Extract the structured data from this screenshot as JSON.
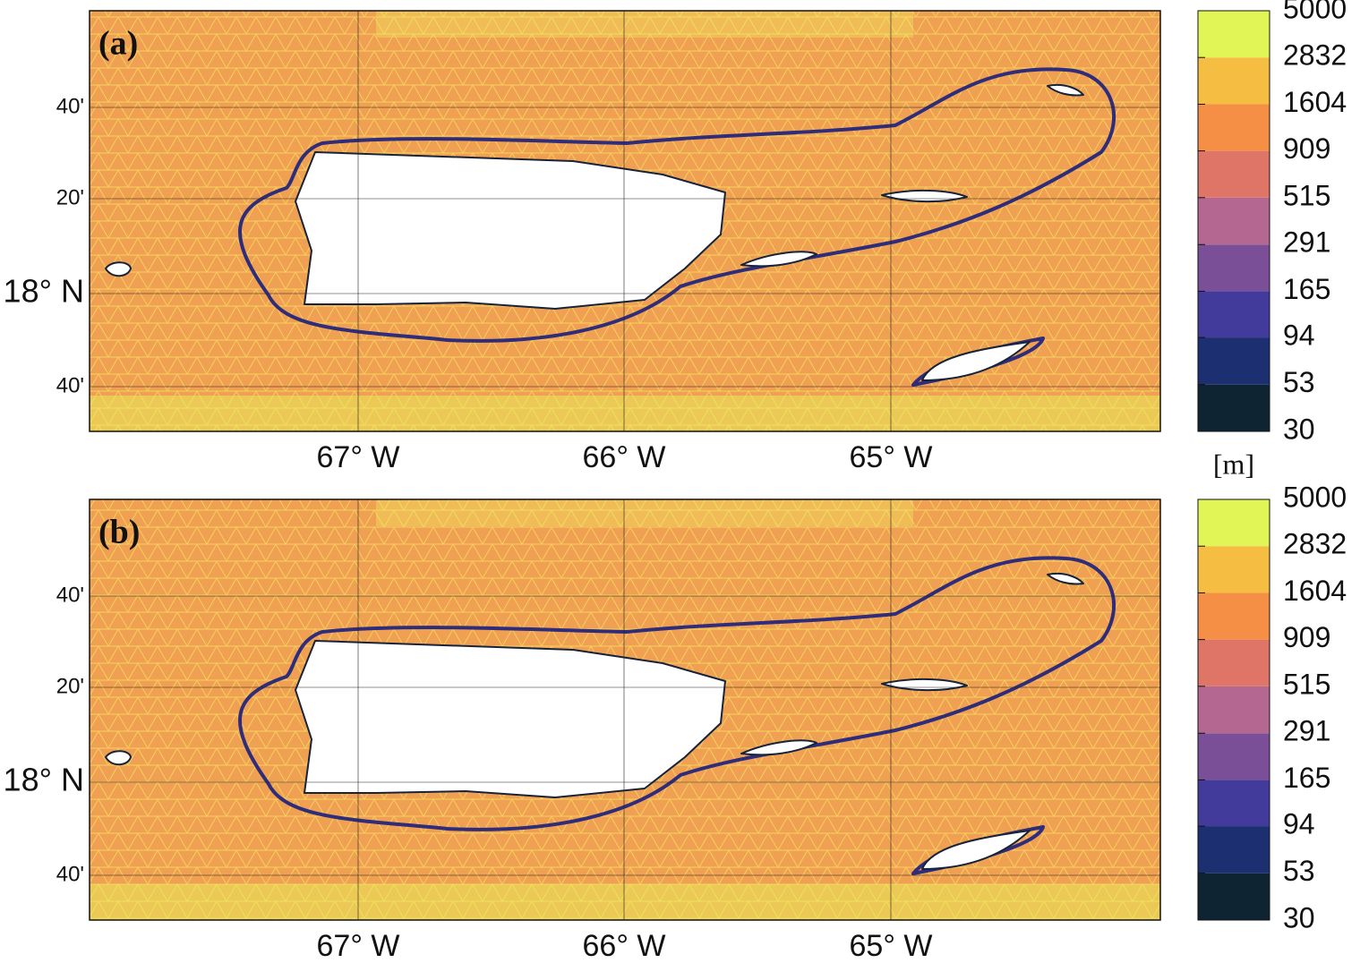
{
  "panels": [
    {
      "label": "(a)"
    },
    {
      "label": "(b)"
    }
  ],
  "latitude_labels": [
    "40'",
    "20'",
    "18° N",
    "40'"
  ],
  "longitude_labels": [
    "67° W",
    "66° W",
    "65° W"
  ],
  "colorbar": {
    "unit": "[m]",
    "ticks": [
      30,
      53,
      94,
      165,
      291,
      515,
      909,
      1604,
      2832,
      5000
    ],
    "log_scale": true,
    "colors": [
      "#0e2433",
      "#1c2f70",
      "#433b9b",
      "#7a4f98",
      "#b46790",
      "#df7566",
      "#f48f45",
      "#f5bd42",
      "#e2f556"
    ]
  }
}
